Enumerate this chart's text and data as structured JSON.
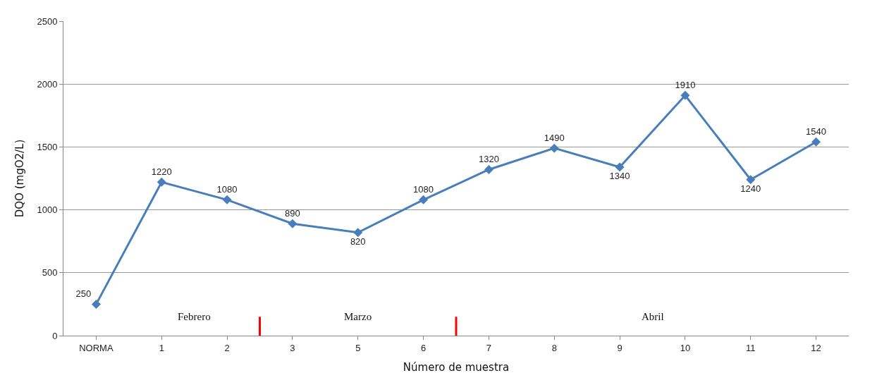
{
  "chart_data": {
    "type": "line",
    "xlabel": "Número de muestra",
    "ylabel": "DQO (mgO2/L)",
    "categories": [
      "NORMA",
      "1",
      "2",
      "3",
      "5",
      "6",
      "7",
      "8",
      "9",
      "10",
      "11",
      "12"
    ],
    "series": [
      {
        "color": "#4a7ebb",
        "values": [
          250,
          1220,
          1080,
          890,
          820,
          1080,
          1320,
          1490,
          1340,
          1910,
          1240,
          1540
        ]
      }
    ],
    "ylim": [
      0,
      2500
    ],
    "yticks": [
      0,
      500,
      1000,
      1500,
      2000,
      2500
    ],
    "grid": "y",
    "marker": "diamond",
    "line_style": "solid",
    "data_labels": true,
    "annotations": [
      "Febrero",
      "Marzo",
      "Abril"
    ]
  }
}
